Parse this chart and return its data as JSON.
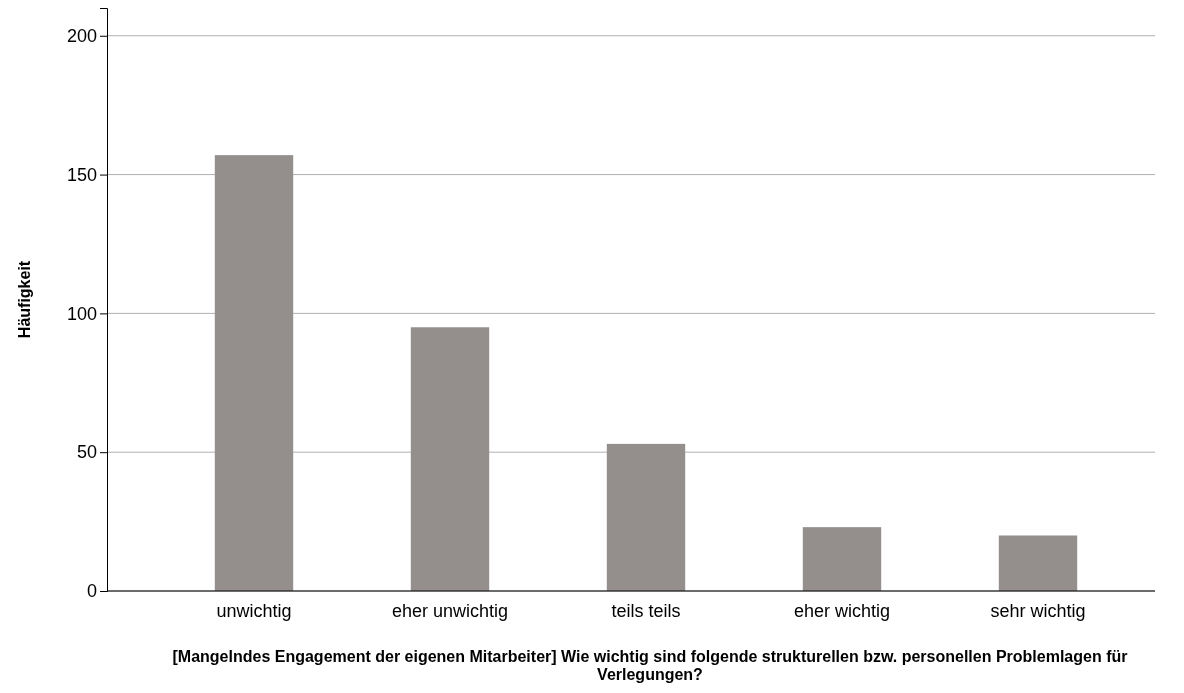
{
  "chart_data": {
    "type": "bar",
    "xlabel": "[Mangelndes Engagement der eigenen Mitarbeiter] Wie wichtig sind folgende strukturellen bzw. personellen Problemlagen für Verlegungen?",
    "ylabel": "Häufigkeit",
    "categories": [
      "unwichtig",
      "eher unwichtig",
      "teils teils",
      "eher wichtig",
      "sehr wichtig"
    ],
    "values": [
      157,
      95,
      53,
      23,
      20
    ],
    "color": "#948f8d",
    "ylim": [
      0,
      210
    ],
    "yticks": [
      0,
      50,
      100,
      150,
      200
    ],
    "grid": "y"
  }
}
